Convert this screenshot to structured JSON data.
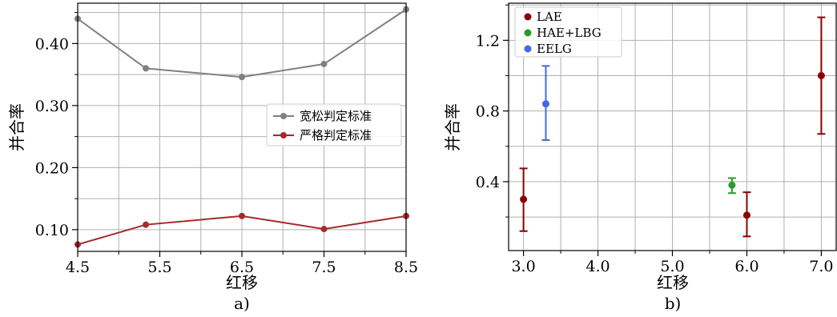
{
  "chart_data": [
    {
      "type": "line",
      "panel_label": "a)",
      "xlabel": "红移",
      "ylabel": "并合率",
      "xlim": [
        4.5,
        8.5
      ],
      "ylim": [
        0.065,
        0.465
      ],
      "x_ticks": [
        "4.5",
        "5.5",
        "6.5",
        "7.5",
        "8.5"
      ],
      "y_ticks": [
        "0.10",
        "0.20",
        "0.30",
        "0.40"
      ],
      "grid": true,
      "legend_position": "center-right",
      "series": [
        {
          "name": "宽松判定标准",
          "color": "#808080",
          "x": [
            4.5,
            5.33,
            6.5,
            7.5,
            8.5
          ],
          "y": [
            0.44,
            0.36,
            0.346,
            0.367,
            0.455
          ]
        },
        {
          "name": "严格判定标准",
          "color": "#a52a2a",
          "x": [
            4.5,
            5.33,
            6.5,
            7.5,
            8.5
          ],
          "y": [
            0.076,
            0.108,
            0.122,
            0.101,
            0.122
          ]
        }
      ]
    },
    {
      "type": "scatter",
      "panel_label": "b)",
      "xlabel": "红移",
      "ylabel": "并合率",
      "xlim": [
        2.8,
        7.2
      ],
      "ylim": [
        0.01,
        1.41
      ],
      "x_ticks": [
        "3.0",
        "4.0",
        "5.0",
        "6.0",
        "7.0"
      ],
      "y_ticks": [
        "0.4",
        "0.8",
        "1.2"
      ],
      "grid": true,
      "legend_position": "top-left",
      "series": [
        {
          "name": "LAE",
          "color": "#8b0000",
          "points": [
            {
              "x": 3.0,
              "y": 0.3,
              "ylow": 0.12,
              "yhigh": 0.475
            },
            {
              "x": 6.0,
              "y": 0.21,
              "ylow": 0.09,
              "yhigh": 0.34
            },
            {
              "x": 7.0,
              "y": 1.0,
              "ylow": 0.67,
              "yhigh": 1.33
            }
          ]
        },
        {
          "name": "HAE+LBG",
          "color": "#2a9a2a",
          "points": [
            {
              "x": 5.8,
              "y": 0.38,
              "ylow": 0.335,
              "yhigh": 0.42
            }
          ]
        },
        {
          "name": "EELG",
          "color": "#4169e1",
          "points": [
            {
              "x": 3.3,
              "y": 0.84,
              "ylow": 0.635,
              "yhigh": 1.055
            }
          ]
        }
      ]
    }
  ]
}
